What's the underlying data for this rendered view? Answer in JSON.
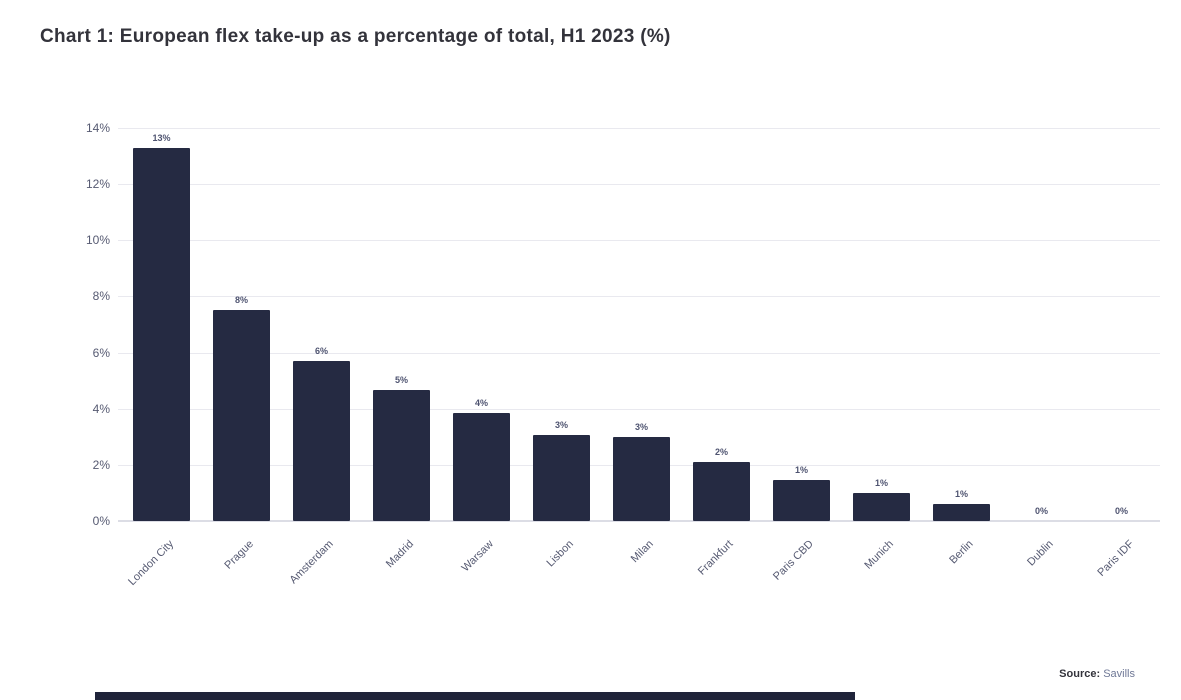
{
  "title": "Chart 1: European flex take-up as a percentage of total, H1 2023 (%)",
  "source": {
    "label": "Source:",
    "value": "Savills"
  },
  "colors": {
    "bar": "#252a42",
    "title_text": "#33333b",
    "axis_text": "#565a72",
    "grid": "#e9e9ef",
    "baseline": "#dcdde5",
    "source_value": "#6f7896",
    "cutoff_strip": "#20243a"
  },
  "chart_data": {
    "type": "bar",
    "title": "Chart 1: European flex take-up as a percentage of total, H1 2023 (%)",
    "categories": [
      "London City",
      "Prague",
      "Amsterdam",
      "Madrid",
      "Warsaw",
      "Lisbon",
      "Milan",
      "Frankfurt",
      "Paris CBD",
      "Munich",
      "Berlin",
      "Dublin",
      "Paris IDF"
    ],
    "values": [
      13.3,
      7.5,
      5.7,
      4.65,
      3.85,
      3.05,
      3.0,
      2.1,
      1.45,
      1.0,
      0.6,
      0,
      0
    ],
    "bar_labels": [
      "13%",
      "8%",
      "6%",
      "5%",
      "4%",
      "3%",
      "3%",
      "2%",
      "1%",
      "1%",
      "1%",
      "0%",
      "0%"
    ],
    "xlabel": "",
    "ylabel": "",
    "ylim": [
      0,
      14
    ],
    "ytick_step": 2,
    "ytick_labels": [
      "0%",
      "2%",
      "4%",
      "6%",
      "8%",
      "10%",
      "12%",
      "14%"
    ],
    "grid": "horizontal",
    "legend": "none",
    "source": "Source: Savills"
  }
}
